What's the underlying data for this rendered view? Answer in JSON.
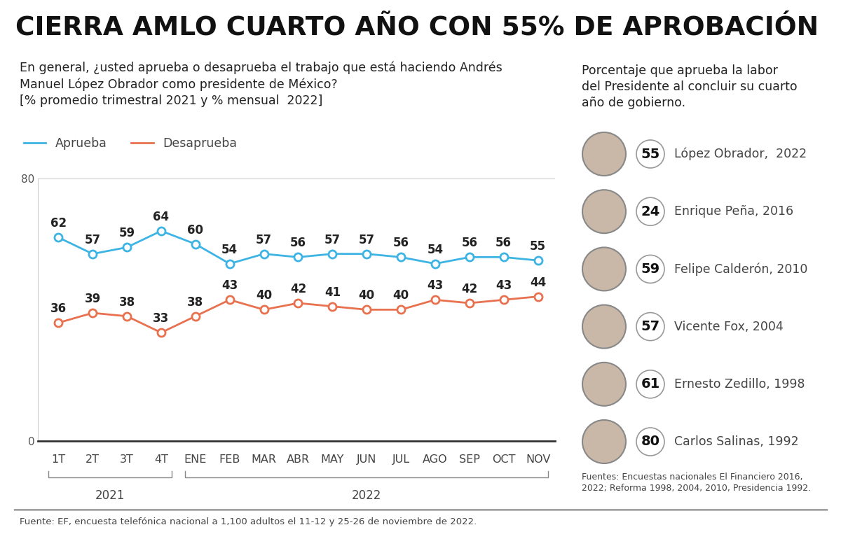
{
  "title": "CIERRA AMLO CUARTO AÑO CON 55% DE APROBACIÓN",
  "chart_data": {
    "type": "line",
    "subtitle": [
      "En general, ¿usted aprueba o desaprueba el trabajo que está haciendo Andrés",
      "Manuel López Obrador como presidente de México?",
      "[% promedio trimestral 2021 y % mensual  2022]"
    ],
    "categories": [
      "1T",
      "2T",
      "3T",
      "4T",
      "ENE",
      "FEB",
      "MAR",
      "ABR",
      "MAY",
      "JUN",
      "JUL",
      "AGO",
      "SEP",
      "OCT",
      "NOV"
    ],
    "category_groups": [
      {
        "label": "2021",
        "categories": [
          "1T",
          "2T",
          "3T",
          "4T"
        ]
      },
      {
        "label": "2022",
        "categories": [
          "ENE",
          "FEB",
          "MAR",
          "ABR",
          "MAY",
          "JUN",
          "JUL",
          "AGO",
          "SEP",
          "OCT",
          "NOV"
        ]
      }
    ],
    "series": [
      {
        "name": "Aprueba",
        "color": "#3db4e3",
        "marker": "o",
        "line_style": "solid",
        "values": [
          62,
          57,
          59,
          64,
          60,
          54,
          57,
          56,
          57,
          57,
          56,
          54,
          56,
          56,
          55
        ]
      },
      {
        "name": "Desaprueba",
        "color": "#e8714f",
        "marker": "o",
        "line_style": "solid",
        "values": [
          36,
          39,
          38,
          33,
          38,
          43,
          40,
          42,
          41,
          40,
          40,
          43,
          42,
          43,
          44
        ]
      }
    ],
    "ylim": [
      0,
      80
    ],
    "yticks": [
      0,
      80
    ],
    "grid": true,
    "legend": "upper left",
    "data_labels": true
  },
  "side_panel": {
    "title": [
      "Porcentaje que aprueba la labor",
      "del Presidente al concluir su cuarto",
      "año de gobierno."
    ],
    "items": [
      {
        "value": 55,
        "label": "López Obrador,  2022"
      },
      {
        "value": 24,
        "label": "Enrique Peña, 2016"
      },
      {
        "value": 59,
        "label": "Felipe Calderón, 2010"
      },
      {
        "value": 57,
        "label": "Vicente Fox, 2004"
      },
      {
        "value": 61,
        "label": "Ernesto Zedillo, 1998"
      },
      {
        "value": 80,
        "label": "Carlos Salinas, 1992"
      }
    ],
    "sources": [
      "Fuentes: Encuestas nacionales El Financiero 2016,",
      "2022; Reforma 1998, 2004, 2010, Presidencia 1992."
    ]
  },
  "source": "Fuente: EF, encuesta telefónica nacional a 1,100 adultos el 11-12 y 25-26 de noviembre de 2022."
}
